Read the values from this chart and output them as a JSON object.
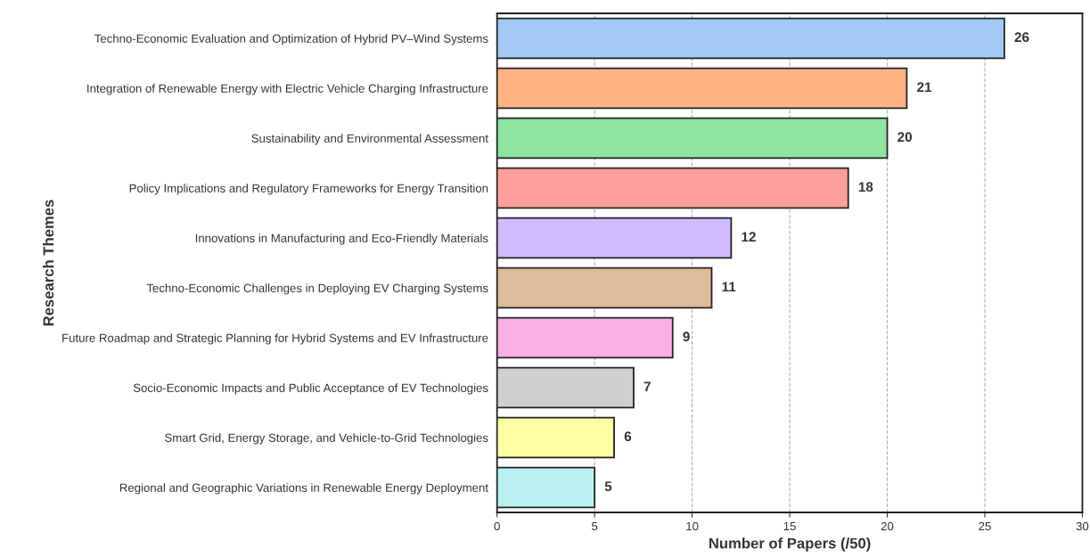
{
  "chart_data": {
    "type": "bar",
    "orientation": "horizontal",
    "xlabel": "Number of Papers (/50)",
    "ylabel": "Research Themes",
    "categories": [
      "Techno-Economic Evaluation and Optimization of Hybrid PV–Wind Systems",
      "Integration of Renewable Energy with Electric Vehicle Charging Infrastructure",
      "Sustainability and Environmental Assessment",
      "Policy Implications and Regulatory Frameworks for Energy Transition",
      "Innovations in Manufacturing and Eco-Friendly Materials",
      "Techno-Economic Challenges in Deploying EV Charging Systems",
      "Future Roadmap and Strategic Planning for Hybrid Systems and EV Infrastructure",
      "Socio-Economic Impacts and Public Acceptance of EV Technologies",
      "Smart Grid, Energy Storage, and Vehicle-to-Grid Technologies",
      "Regional and Geographic Variations in Renewable Energy Deployment"
    ],
    "values": [
      26,
      21,
      20,
      18,
      12,
      11,
      9,
      7,
      6,
      5
    ],
    "colors": [
      "#a1c9f4",
      "#ffb482",
      "#8de5a1",
      "#ff9f9b",
      "#d0bbff",
      "#debb9b",
      "#fab0e4",
      "#cfcfcf",
      "#fffea3",
      "#b9f2f0"
    ],
    "xlim": [
      0,
      30
    ],
    "xticks": [
      0,
      5,
      10,
      15,
      20,
      25,
      30
    ],
    "grid": "x",
    "data_labels": true
  }
}
